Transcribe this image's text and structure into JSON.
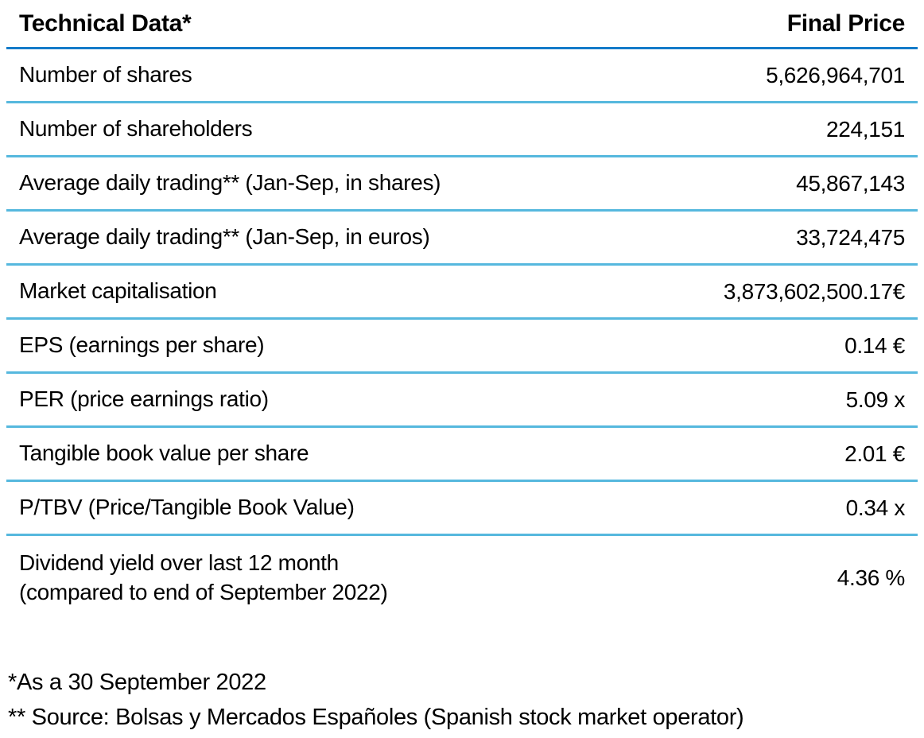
{
  "table": {
    "header": {
      "label": "Technical Data*",
      "value_label": "Final Price"
    },
    "rows": [
      {
        "label": "Number of shares",
        "value": "5,626,964,701"
      },
      {
        "label": "Number of shareholders",
        "value": "224,151"
      },
      {
        "label": "Average daily trading** (Jan-Sep, in shares)",
        "value": "45,867,143"
      },
      {
        "label": "Average daily trading** (Jan-Sep, in euros)",
        "value": "33,724,475"
      },
      {
        "label": "Market capitalisation",
        "value": "3,873,602,500.17€"
      },
      {
        "label": "EPS (earnings per share)",
        "value": "0.14 €"
      },
      {
        "label": "PER (price earnings ratio)",
        "value": "5.09 x"
      },
      {
        "label": "Tangible book value per share",
        "value": "2.01 €"
      },
      {
        "label": "P/TBV (Price/Tangible Book Value)",
        "value": "0.34 x"
      },
      {
        "label": "Dividend yield over last 12 month\n(compared to end of September 2022)",
        "value": "4.36 %"
      }
    ],
    "footnotes": [
      "*As a 30 September 2022",
      "** Source: Bolsas y Mercados Españoles (Spanish stock market operator)"
    ]
  },
  "colors": {
    "header_rule": "#147bc9",
    "row_rule": "#56b8de",
    "text": "#000000"
  }
}
